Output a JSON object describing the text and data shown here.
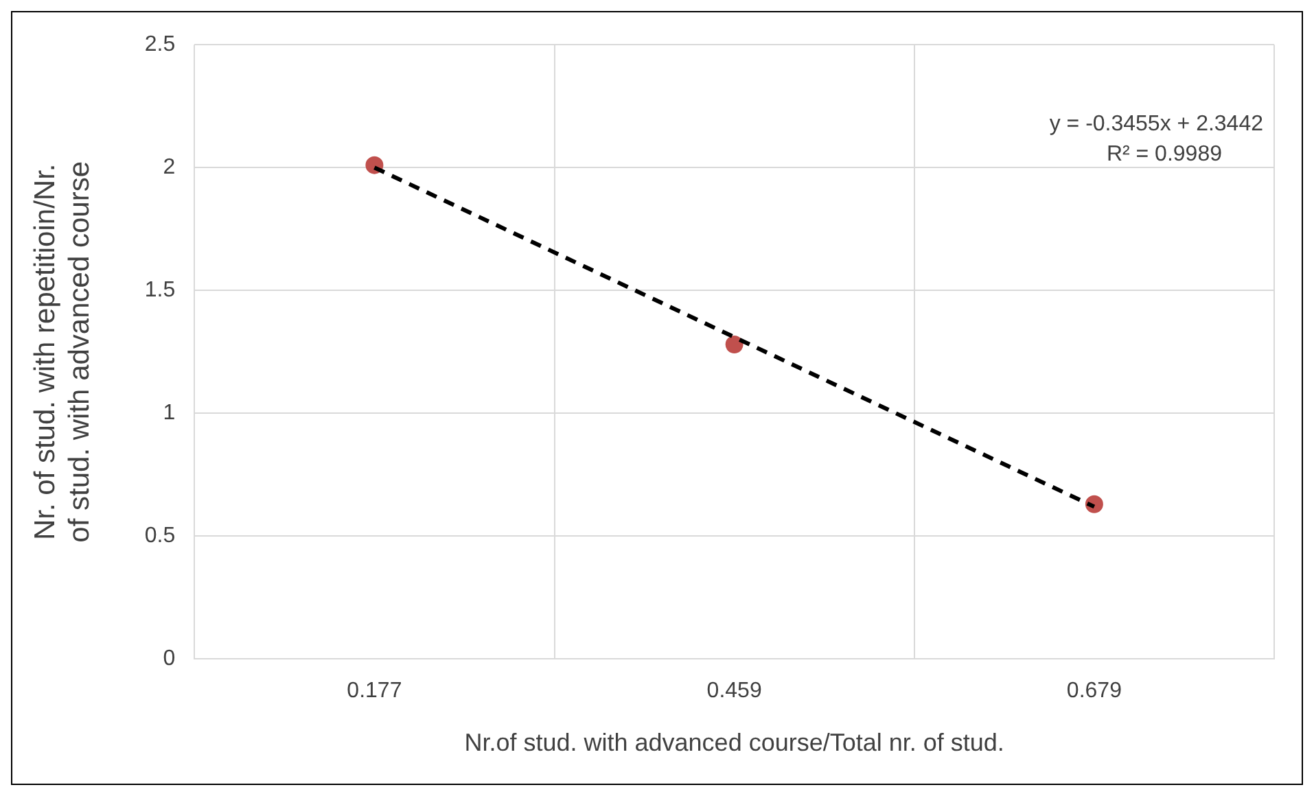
{
  "chart_data": {
    "type": "scatter",
    "xlabel": "Nr.of stud. with advanced course/Total nr. of stud.",
    "ylabel": "Nr. of stud. with repetitioin/Nr. of stud. with advanced course",
    "categories": [
      "0.177",
      "0.459",
      "0.679"
    ],
    "series": [
      {
        "color": "#c0504d",
        "values": [
          2.01,
          1.28,
          0.63
        ],
        "marker": "circle"
      },
      {
        "type": "line",
        "color": "#000000",
        "x": [
          "0.177",
          "0.679"
        ],
        "values": [
          2.0,
          0.62
        ],
        "line_style": "dashed",
        "marker": "none"
      }
    ],
    "ylim": [
      0,
      2.5
    ],
    "yticks": [
      0,
      0.5,
      1,
      1.5,
      2,
      2.5
    ],
    "grid": true,
    "legend": false,
    "annotations": [
      "y = -0.3455x + 2.3442",
      "R² = 0.9989"
    ]
  }
}
